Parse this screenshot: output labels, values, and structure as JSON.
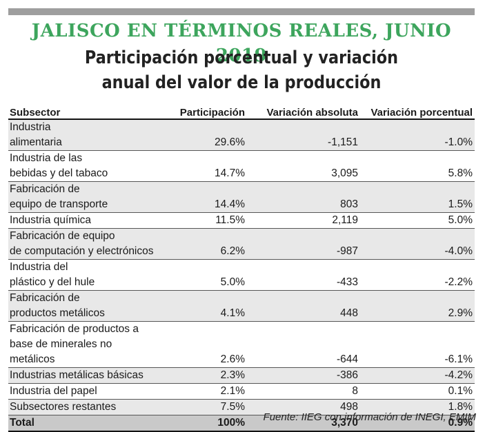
{
  "header": {
    "title": "JALISCO EN TÉRMINOS REALES, JUNIO 2019",
    "subtitle_line1": "Participación porcentual y variación",
    "subtitle_line2": "anual del valor de la producción"
  },
  "table": {
    "columns": [
      "Subsector",
      "Participación",
      "Variación absoluta",
      "Variación porcentual"
    ],
    "rows": [
      {
        "subsector_line1": "Industria",
        "subsector_line2": "alimentaria",
        "participacion": "29.6%",
        "var_abs": "-1,151",
        "var_pct": "-1.0%"
      },
      {
        "subsector_line1": "Industria de las",
        "subsector_line2": "bebidas y del tabaco",
        "participacion": "14.7%",
        "var_abs": "3,095",
        "var_pct": "5.8%"
      },
      {
        "subsector_line1": "Fabricación de",
        "subsector_line2": "equipo de transporte",
        "participacion": "14.4%",
        "var_abs": "803",
        "var_pct": "1.5%"
      },
      {
        "subsector_line1": "Industria química",
        "subsector_line2": "",
        "participacion": "11.5%",
        "var_abs": "2,119",
        "var_pct": "5.0%"
      },
      {
        "subsector_line1": "Fabricación de equipo",
        "subsector_line2": "de computación y electrónicos",
        "participacion": "6.2%",
        "var_abs": "-987",
        "var_pct": "-4.0%"
      },
      {
        "subsector_line1": "Industria del",
        "subsector_line2": "plástico y del hule",
        "participacion": "5.0%",
        "var_abs": "-433",
        "var_pct": "-2.2%"
      },
      {
        "subsector_line1": "Fabricación de",
        "subsector_line2": "productos metálicos",
        "participacion": "4.1%",
        "var_abs": "448",
        "var_pct": "2.9%"
      },
      {
        "subsector_line1": "Fabricación de productos a",
        "subsector_line2": "base de minerales no metálicos",
        "participacion": "2.6%",
        "var_abs": "-644",
        "var_pct": "-6.1%"
      },
      {
        "subsector_line1": "Industrias metálicas básicas",
        "subsector_line2": "",
        "participacion": "2.3%",
        "var_abs": "-386",
        "var_pct": "-4.2%"
      },
      {
        "subsector_line1": "Industria del papel",
        "subsector_line2": "",
        "participacion": "2.1%",
        "var_abs": "8",
        "var_pct": "0.1%"
      },
      {
        "subsector_line1": "Subsectores restantes",
        "subsector_line2": "",
        "participacion": "7.5%",
        "var_abs": "498",
        "var_pct": "1.8%"
      }
    ],
    "total": {
      "label": "Total",
      "participacion": "100%",
      "var_abs": "3,370",
      "var_pct": "0.9%"
    }
  },
  "source": "Fuente: IIEG con información de INEGI, EMIM",
  "colors": {
    "title_green": "#3da55d",
    "row_shade": "#e8e8e8",
    "total_shade": "#c9c9c9",
    "top_bar": "#9e9e9e"
  }
}
